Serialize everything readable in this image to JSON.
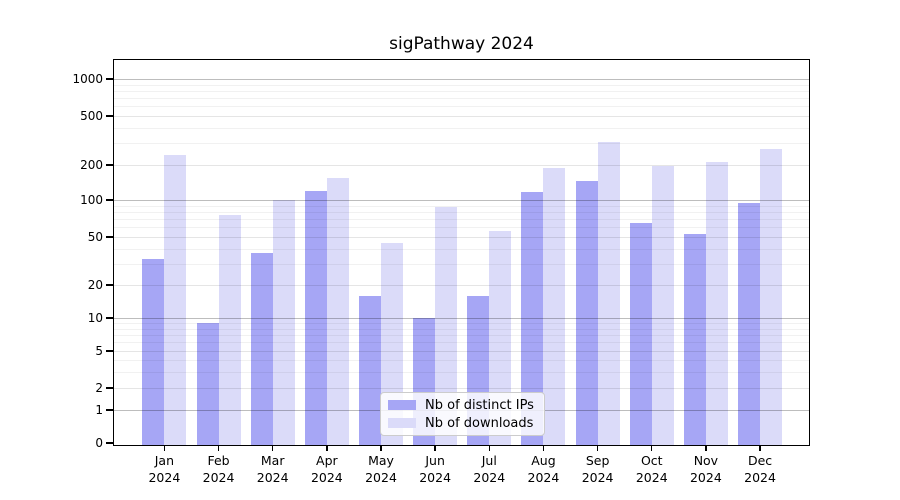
{
  "chart_data": {
    "type": "bar",
    "title": "sigPathway 2024",
    "categories": [
      "Jan",
      "Feb",
      "Mar",
      "Apr",
      "May",
      "Jun",
      "Jul",
      "Aug",
      "Sep",
      "Oct",
      "Nov",
      "Dec"
    ],
    "category_year": "2024",
    "series": [
      {
        "name": "Nb of distinct IPs",
        "color": "#a6a6f5",
        "values": [
          33,
          9,
          37,
          120,
          16,
          10,
          16,
          118,
          145,
          65,
          53,
          95
        ]
      },
      {
        "name": "Nb of downloads",
        "color": "#dbdbf9",
        "values": [
          240,
          76,
          100,
          155,
          45,
          88,
          56,
          188,
          310,
          195,
          210,
          268
        ]
      }
    ],
    "y_ticks": [
      0,
      1,
      2,
      5,
      10,
      20,
      50,
      100,
      200,
      500,
      1000
    ],
    "y_scale": "log",
    "ylim": [
      0,
      1000
    ],
    "grid": true,
    "legend_position": "lower-center",
    "background_color": "#ffffff",
    "spine_color": "#000000"
  }
}
